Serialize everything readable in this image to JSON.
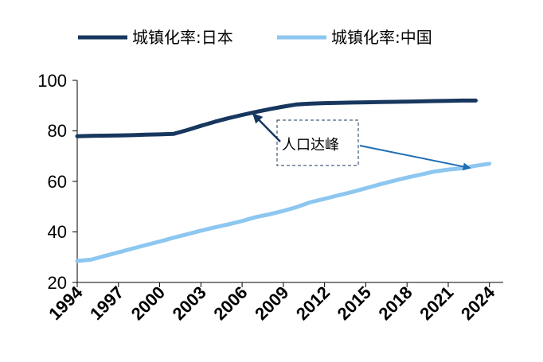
{
  "chart_data": {
    "type": "line",
    "x": [
      1994,
      1995,
      1996,
      1997,
      1998,
      1999,
      2000,
      2001,
      2002,
      2003,
      2004,
      2005,
      2006,
      2007,
      2008,
      2009,
      2010,
      2011,
      2012,
      2013,
      2014,
      2015,
      2016,
      2017,
      2018,
      2019,
      2020,
      2021,
      2022,
      2023,
      2024
    ],
    "series": [
      {
        "name": "城镇化率:日本",
        "color": "#17375e",
        "values": [
          77.9,
          78.0,
          78.1,
          78.2,
          78.3,
          78.5,
          78.6,
          78.8,
          80.3,
          82.0,
          83.6,
          85.0,
          86.3,
          87.5,
          88.6,
          89.6,
          90.5,
          90.8,
          91.0,
          91.1,
          91.2,
          91.3,
          91.4,
          91.5,
          91.6,
          91.7,
          91.8,
          91.9,
          92.0,
          92.0,
          null
        ]
      },
      {
        "name": "城镇化率:中国",
        "color": "#8dc7f0",
        "values": [
          28.5,
          29.0,
          30.5,
          31.9,
          33.4,
          34.8,
          36.2,
          37.7,
          39.1,
          40.5,
          41.8,
          43.0,
          44.3,
          45.9,
          47.0,
          48.3,
          49.9,
          51.8,
          53.1,
          54.5,
          55.8,
          57.3,
          58.8,
          60.2,
          61.5,
          62.7,
          63.9,
          64.7,
          65.2,
          66.2,
          67.0
        ]
      }
    ],
    "x_ticks": [
      "1994",
      "1997",
      "2000",
      "2003",
      "2006",
      "2009",
      "2012",
      "2015",
      "2018",
      "2021",
      "2024"
    ],
    "y_ticks": [
      "20",
      "40",
      "60",
      "80",
      "100"
    ],
    "ylim": [
      20,
      100
    ],
    "xlim": [
      1994,
      2025
    ],
    "grid": false,
    "legend_position": "top",
    "annotation": {
      "text": "人口达峰",
      "points_to": [
        {
          "x": 2006.8,
          "y": 86.7
        },
        {
          "x": 2022.6,
          "y": 65.3
        }
      ]
    }
  }
}
